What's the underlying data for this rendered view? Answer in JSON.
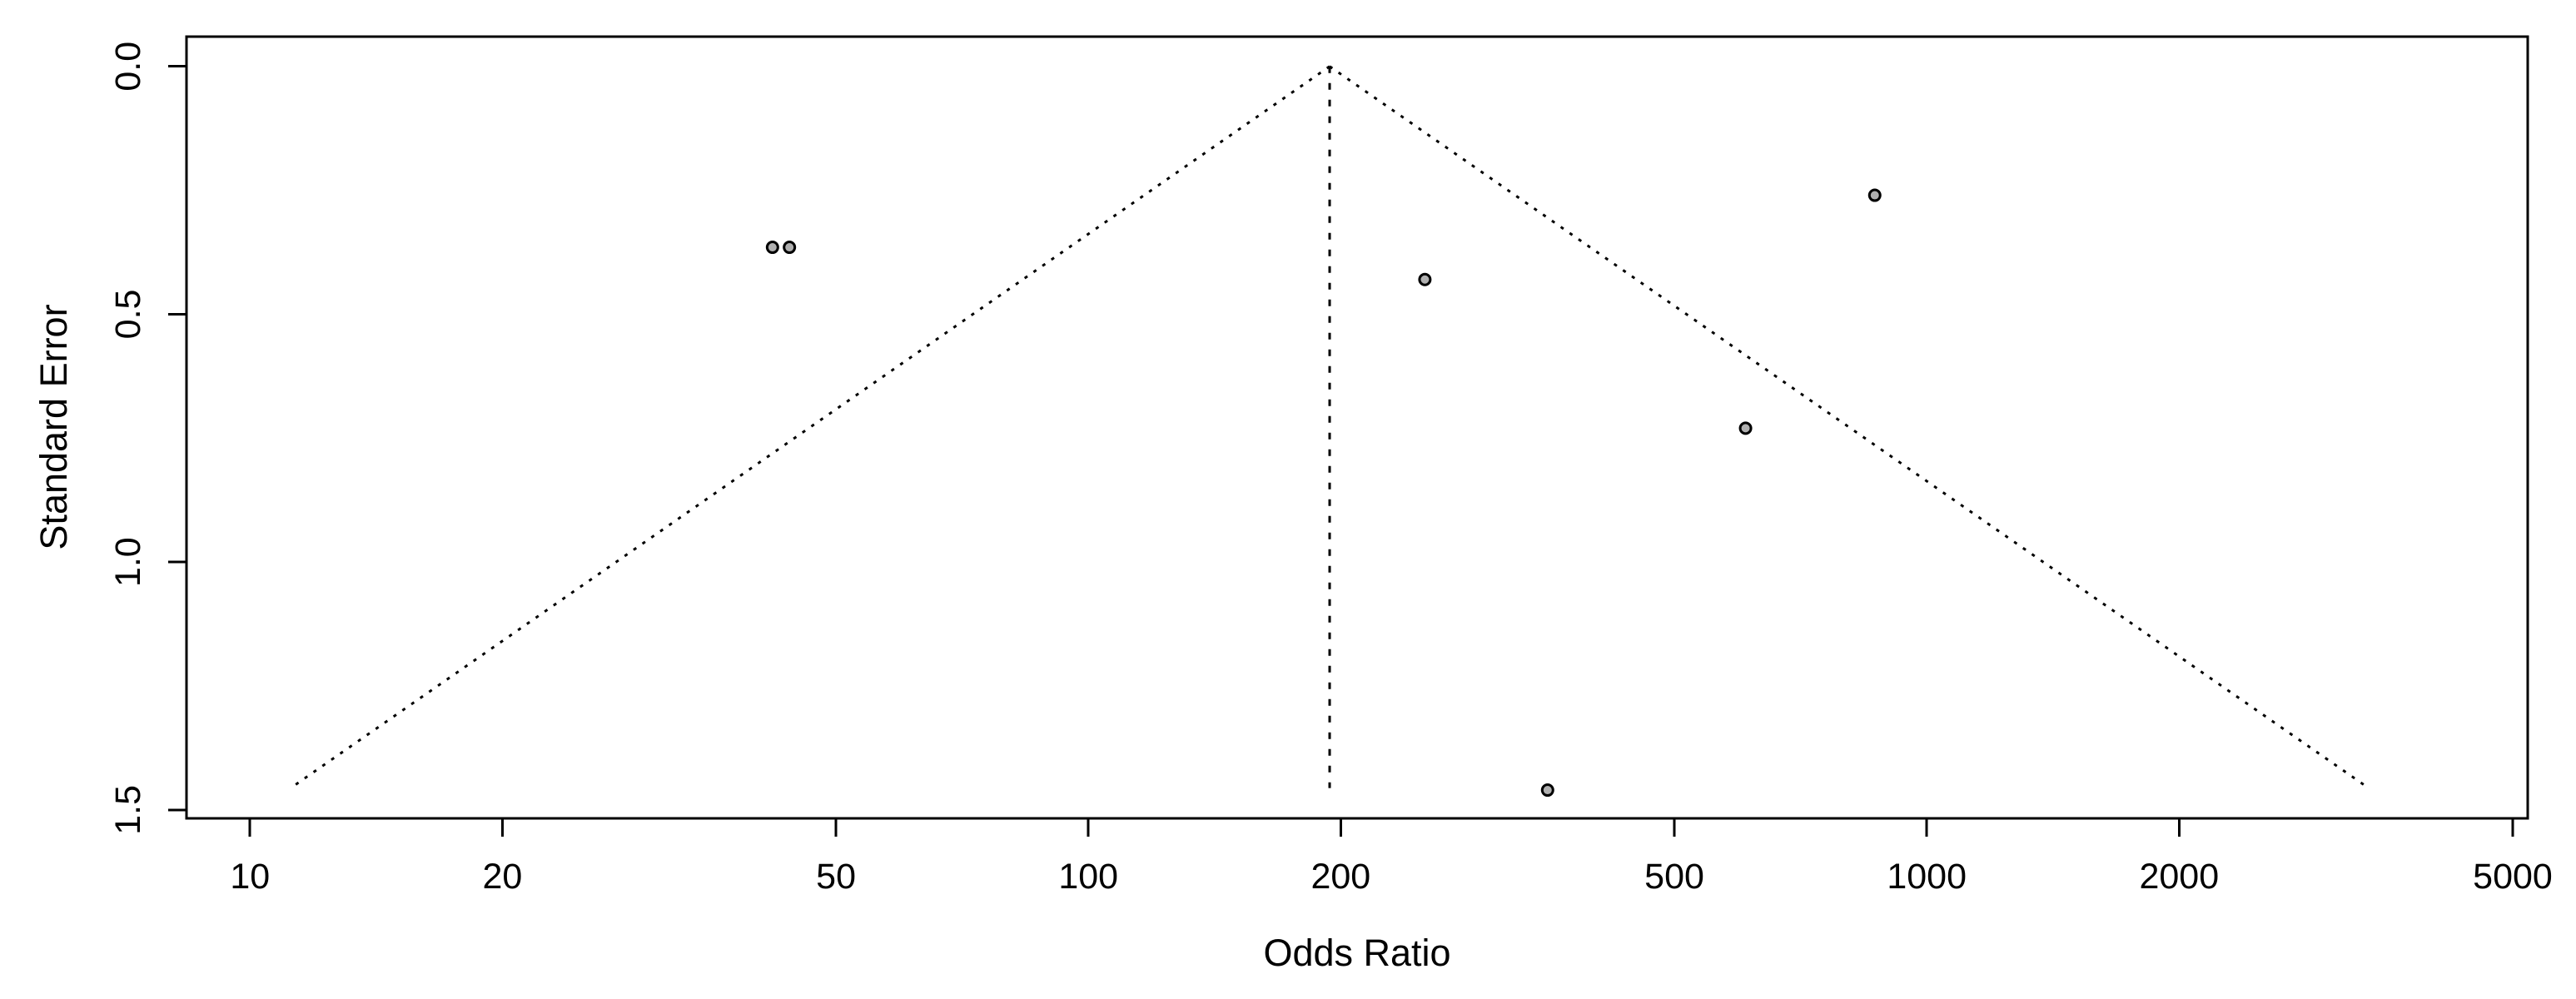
{
  "figure": {
    "background": "#ffffff",
    "kind": "funnel plot"
  },
  "chart_data": {
    "type": "scatter",
    "subtype": "funnel-plot",
    "title": "",
    "xlabel": "Odds Ratio",
    "ylabel": "Standard Error",
    "x_scale": "log10",
    "x_ticks": [
      10,
      20,
      50,
      100,
      200,
      500,
      1000,
      2000,
      5000
    ],
    "y_ticks": [
      {
        "value": 0.0,
        "label": "0.0"
      },
      {
        "value": 0.5,
        "label": "0.5"
      },
      {
        "value": 1.0,
        "label": "1.0"
      },
      {
        "value": 1.5,
        "label": "1.5"
      }
    ],
    "x_range": [
      8.4,
      5210
    ],
    "y_range": [
      -0.06,
      1.517
    ],
    "y_axis_direction": "increases-downward",
    "grid": "off",
    "legend": "none",
    "points": [
      {
        "or": 42,
        "se": 0.365
      },
      {
        "or": 44,
        "se": 0.365
      },
      {
        "or": 252,
        "se": 0.43
      },
      {
        "or": 353,
        "se": 1.46
      },
      {
        "or": 608,
        "se": 0.73
      },
      {
        "or": 867,
        "se": 0.26
      }
    ],
    "funnel": {
      "center_or": 194,
      "se_top": 0,
      "se_bottom": 1.456,
      "z": 1.96,
      "line_style": "dotted"
    },
    "colors": {
      "point_fill": "#b0b0b0",
      "point_stroke": "#000000",
      "line_color": "#000000",
      "axis_color": "#000000",
      "text_color": "#000000"
    }
  }
}
